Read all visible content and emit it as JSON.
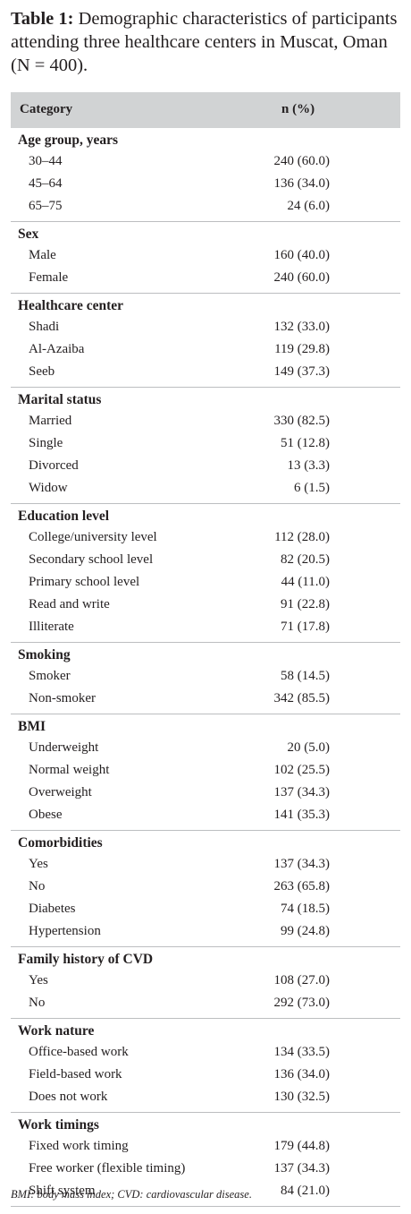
{
  "caption": {
    "label": "Table 1:",
    "text": "Demographic characteristics of participants attending three healthcare centers in Muscat, Oman (N = 400)."
  },
  "table": {
    "headers": {
      "category": "Category",
      "n_pct": "n (%)"
    },
    "groups": [
      {
        "title": "Age group, years",
        "rows": [
          {
            "label": "30–44",
            "value": "240 (60.0)"
          },
          {
            "label": "45–64",
            "value": "136 (34.0)"
          },
          {
            "label": "65–75",
            "value": "24 (6.0)"
          }
        ]
      },
      {
        "title": "Sex",
        "rows": [
          {
            "label": "Male",
            "value": "160 (40.0)"
          },
          {
            "label": "Female",
            "value": "240 (60.0)"
          }
        ]
      },
      {
        "title": "Healthcare center",
        "rows": [
          {
            "label": "Shadi",
            "value": "132 (33.0)"
          },
          {
            "label": "Al-Azaiba",
            "value": "119 (29.8)"
          },
          {
            "label": "Seeb",
            "value": "149 (37.3)"
          }
        ]
      },
      {
        "title": "Marital status",
        "rows": [
          {
            "label": "Married",
            "value": "330 (82.5)"
          },
          {
            "label": "Single",
            "value": "51 (12.8)"
          },
          {
            "label": "Divorced",
            "value": "13 (3.3)"
          },
          {
            "label": "Widow",
            "value": "6 (1.5)"
          }
        ]
      },
      {
        "title": "Education level",
        "rows": [
          {
            "label": "College/university level",
            "value": "112 (28.0)"
          },
          {
            "label": "Secondary school level",
            "value": "82 (20.5)"
          },
          {
            "label": "Primary school level",
            "value": "44 (11.0)"
          },
          {
            "label": "Read and write",
            "value": "91 (22.8)"
          },
          {
            "label": "Illiterate",
            "value": "71 (17.8)"
          }
        ]
      },
      {
        "title": "Smoking",
        "rows": [
          {
            "label": "Smoker",
            "value": "58 (14.5)"
          },
          {
            "label": "Non-smoker",
            "value": "342 (85.5)"
          }
        ]
      },
      {
        "title": "BMI",
        "rows": [
          {
            "label": "Underweight",
            "value": "20 (5.0)"
          },
          {
            "label": "Normal weight",
            "value": "102 (25.5)"
          },
          {
            "label": "Overweight",
            "value": "137 (34.3)"
          },
          {
            "label": "Obese",
            "value": "141 (35.3)"
          }
        ]
      },
      {
        "title": "Comorbidities",
        "rows": [
          {
            "label": "Yes",
            "value": "137 (34.3)"
          },
          {
            "label": "No",
            "value": "263 (65.8)"
          },
          {
            "label": "Diabetes",
            "value": "74 (18.5)"
          },
          {
            "label": "Hypertension",
            "value": "99 (24.8)"
          }
        ]
      },
      {
        "title": "Family history of CVD",
        "rows": [
          {
            "label": "Yes",
            "value": "108 (27.0)"
          },
          {
            "label": "No",
            "value": "292 (73.0)"
          }
        ]
      },
      {
        "title": "Work nature",
        "rows": [
          {
            "label": "Office-based work",
            "value": "134 (33.5)"
          },
          {
            "label": "Field-based work",
            "value": "136 (34.0)"
          },
          {
            "label": "Does not work",
            "value": "130 (32.5)"
          }
        ]
      },
      {
        "title": "Work timings",
        "rows": [
          {
            "label": "Fixed work timing",
            "value": "179 (44.8)"
          },
          {
            "label": "Free worker (flexible timing)",
            "value": "137 (34.3)"
          },
          {
            "label": "Shift system",
            "value": "84 (21.0)"
          }
        ]
      }
    ]
  },
  "footnote": "BMI: body mass index; CVD: cardiovascular disease."
}
